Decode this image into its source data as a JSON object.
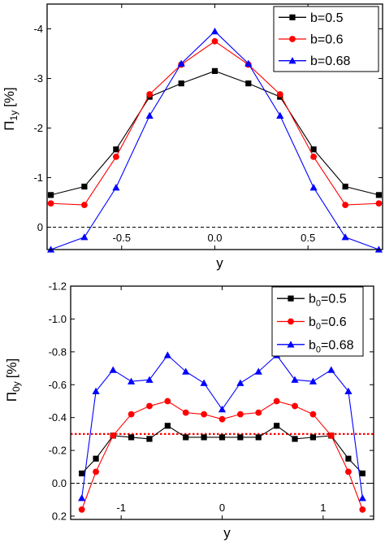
{
  "chart_data": [
    {
      "type": "line",
      "xlabel": "y",
      "ylabel_main": "Π",
      "ylabel_sub": "1y",
      "ylabel_unit": "[%]",
      "xlim": [
        -0.9,
        0.9
      ],
      "ylim": [
        0.45,
        -4.5
      ],
      "xticks": [
        -0.5,
        0.0,
        0.5
      ],
      "xtick_labels": [
        "-0.5",
        "0.0",
        "0.5"
      ],
      "yticks": [
        0,
        -1,
        -2,
        -3,
        -4
      ],
      "ytick_labels": [
        "0",
        "-1",
        "-2",
        "-3",
        "-4"
      ],
      "reference_line": {
        "y": 0,
        "style": "dashed",
        "color": "#000000"
      },
      "legend_position": "top-right",
      "x": [
        -0.88,
        -0.7,
        -0.53,
        -0.35,
        -0.18,
        0.0,
        0.18,
        0.35,
        0.53,
        0.7,
        0.88
      ],
      "series": [
        {
          "name": "b=0.5",
          "color": "#000000",
          "marker": "square",
          "values": [
            -0.65,
            -0.82,
            -1.57,
            -2.63,
            -2.9,
            -3.15,
            -2.9,
            -2.63,
            -1.57,
            -0.82,
            -0.65
          ]
        },
        {
          "name": "b=0.6",
          "color": "#ff0000",
          "marker": "circle",
          "values": [
            -0.48,
            -0.45,
            -1.42,
            -2.68,
            -3.28,
            -3.75,
            -3.28,
            -2.68,
            -1.42,
            -0.45,
            -0.48
          ]
        },
        {
          "name": "b=0.68",
          "color": "#0000ff",
          "marker": "triangle",
          "values": [
            0.45,
            0.2,
            -0.8,
            -2.25,
            -3.3,
            -3.95,
            -3.3,
            -2.25,
            -0.8,
            0.2,
            0.45
          ]
        }
      ]
    },
    {
      "type": "line",
      "xlabel": "y",
      "ylabel_main": "Π",
      "ylabel_sub": "0y",
      "ylabel_unit": "[%]",
      "xlim": [
        -1.5,
        1.5
      ],
      "ylim": [
        0.22,
        -1.2
      ],
      "xticks": [
        -1,
        0,
        1
      ],
      "xtick_labels": [
        "-1",
        "0",
        "1"
      ],
      "yticks": [
        0.2,
        0.0,
        -0.2,
        -0.4,
        -0.6,
        -0.8,
        -1.0,
        -1.2
      ],
      "ytick_labels": [
        "0.2",
        "0.0",
        "-0.2",
        "-0.4",
        "-0.6",
        "-0.8",
        "-1.0",
        "-1.2"
      ],
      "reference_line": {
        "y": 0,
        "style": "dashed",
        "color": "#000000"
      },
      "threshold_line": {
        "y": -0.3,
        "style": "dotted",
        "color": "#ff0000"
      },
      "legend_position": "top-right",
      "x": [
        -1.39,
        -1.25,
        -1.08,
        -0.9,
        -0.72,
        -0.54,
        -0.36,
        -0.18,
        0.0,
        0.18,
        0.36,
        0.54,
        0.72,
        0.9,
        1.08,
        1.25,
        1.39
      ],
      "series": [
        {
          "name_main": "b",
          "name_sub": "0",
          "name_suffix": "=0.5",
          "color": "#000000",
          "marker": "square",
          "values": [
            -0.06,
            -0.15,
            -0.29,
            -0.28,
            -0.27,
            -0.35,
            -0.28,
            -0.28,
            -0.28,
            -0.28,
            -0.28,
            -0.35,
            -0.27,
            -0.28,
            -0.29,
            -0.15,
            -0.06
          ]
        },
        {
          "name_main": "b",
          "name_sub": "0",
          "name_suffix": "=0.6",
          "color": "#ff0000",
          "marker": "circle",
          "values": [
            0.16,
            -0.07,
            -0.29,
            -0.42,
            -0.47,
            -0.5,
            -0.43,
            -0.42,
            -0.39,
            -0.42,
            -0.43,
            -0.5,
            -0.47,
            -0.42,
            -0.29,
            -0.07,
            0.16
          ]
        },
        {
          "name_main": "b",
          "name_sub": "0",
          "name_suffix": "=0.68",
          "color": "#0000ff",
          "marker": "triangle",
          "values": [
            0.09,
            -0.56,
            -0.69,
            -0.62,
            -0.63,
            -0.78,
            -0.68,
            -0.61,
            -0.45,
            -0.61,
            -0.68,
            -0.78,
            -0.63,
            -0.62,
            -0.69,
            -0.56,
            0.09
          ]
        }
      ]
    }
  ]
}
